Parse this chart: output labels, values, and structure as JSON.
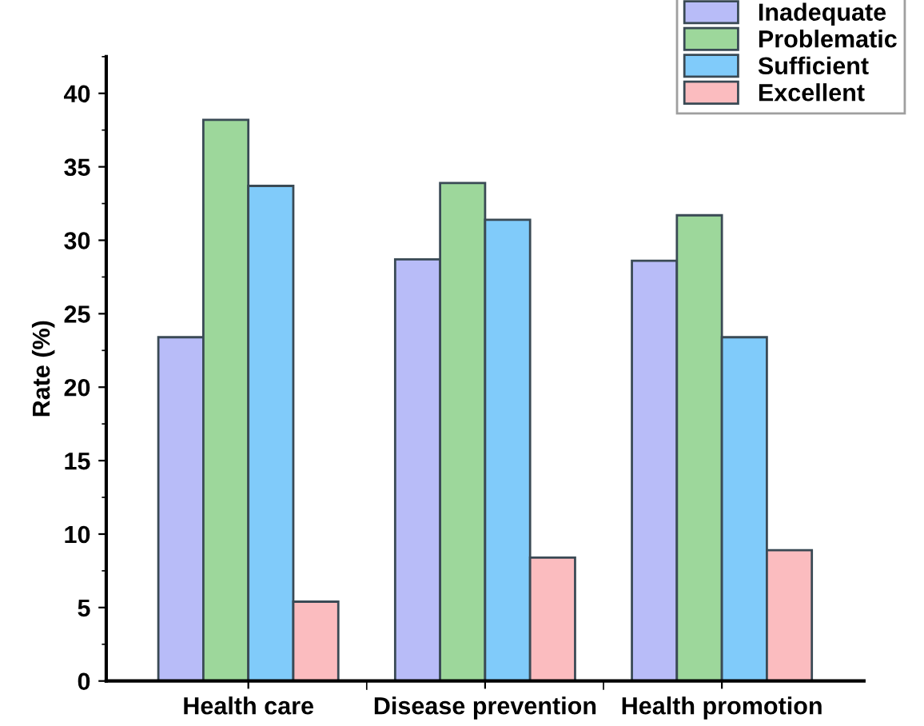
{
  "chart_data": {
    "type": "bar",
    "ylabel": "Rate (%)",
    "categories": [
      "Health care",
      "Disease prevention",
      "Health promotion"
    ],
    "series": [
      {
        "name": "Inadequate",
        "color": "#b8bcf8",
        "values": [
          23.4,
          28.7,
          28.6
        ]
      },
      {
        "name": "Problematic",
        "color": "#9dd79b",
        "values": [
          38.2,
          33.9,
          31.7
        ]
      },
      {
        "name": "Sufficient",
        "color": "#80cbfa",
        "values": [
          33.7,
          31.4,
          23.4
        ]
      },
      {
        "name": "Excellent",
        "color": "#fbbcbf",
        "values": [
          5.4,
          8.4,
          8.9
        ]
      }
    ],
    "ylim": [
      0,
      42.5
    ],
    "yticks": [
      0,
      5,
      10,
      15,
      20,
      25,
      30,
      35,
      40
    ],
    "grid": false,
    "legend": "top right"
  }
}
